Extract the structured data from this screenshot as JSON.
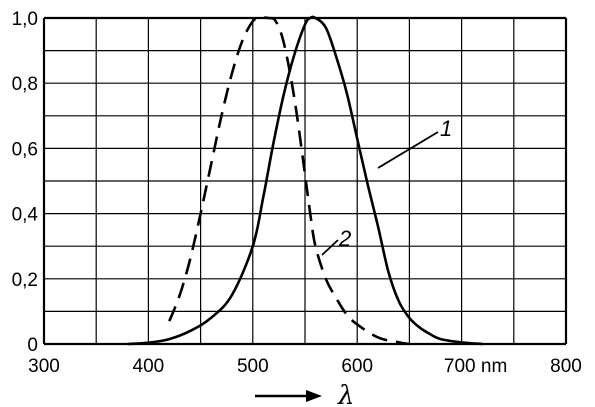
{
  "chart_data": {
    "type": "line",
    "title": "",
    "xlabel": "λ",
    "ylabel": "",
    "xlim": [
      300,
      800
    ],
    "ylim": [
      0,
      1.0
    ],
    "grid": true,
    "x_ticks": [
      300,
      400,
      500,
      600,
      700,
      800
    ],
    "x_tick_labels": [
      "300",
      "400",
      "500",
      "600",
      "700 nm",
      "800"
    ],
    "y_ticks": [
      0,
      0.2,
      0.4,
      0.6,
      0.8,
      1.0
    ],
    "y_tick_labels": [
      "0",
      "0,2",
      "0,4",
      "0,6",
      "0,8",
      "1,0"
    ],
    "series": [
      {
        "name": "1",
        "style": "solid",
        "color": "#000000",
        "x": [
          380,
          400,
          420,
          440,
          460,
          480,
          500,
          510,
          520,
          530,
          540,
          550,
          555,
          560,
          570,
          580,
          590,
          600,
          610,
          620,
          630,
          640,
          650,
          660,
          670,
          680,
          700,
          720
        ],
        "y": [
          0.0,
          0.004,
          0.015,
          0.04,
          0.08,
          0.15,
          0.3,
          0.45,
          0.62,
          0.77,
          0.89,
          0.98,
          1.0,
          1.0,
          0.97,
          0.88,
          0.77,
          0.63,
          0.49,
          0.36,
          0.22,
          0.13,
          0.08,
          0.05,
          0.03,
          0.015,
          0.005,
          0.0
        ]
      },
      {
        "name": "2",
        "style": "dashed",
        "color": "#000000",
        "x": [
          420,
          430,
          440,
          450,
          460,
          470,
          480,
          490,
          500,
          507,
          515,
          522,
          530,
          540,
          550,
          555,
          560,
          570,
          580,
          590,
          600,
          620,
          640,
          650
        ],
        "y": [
          0.07,
          0.15,
          0.26,
          0.4,
          0.55,
          0.7,
          0.83,
          0.93,
          0.99,
          1.0,
          1.0,
          0.99,
          0.92,
          0.75,
          0.52,
          0.4,
          0.3,
          0.2,
          0.14,
          0.09,
          0.06,
          0.02,
          0.005,
          0.0
        ]
      }
    ]
  }
}
